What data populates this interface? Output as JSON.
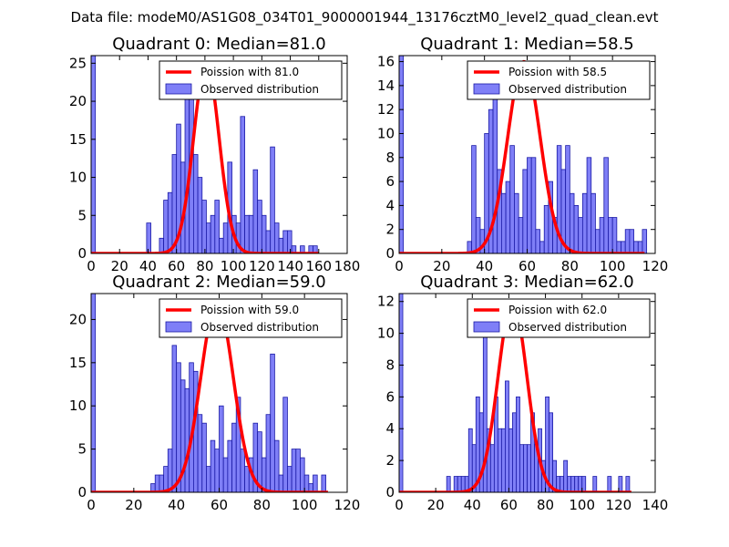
{
  "suptitle": "Data file: modeM0/AS1G08_034T01_9000001944_13176cztM0_level2_quad_clean.evt",
  "colors": {
    "bar_fill": "#7f7ff7",
    "bar_edge": "#1a1aa6",
    "poisson_line": "#ff0000"
  },
  "chart_data": [
    {
      "type": "bar",
      "title": "Quadrant 0: Median=81.0",
      "xlim": [
        0,
        180
      ],
      "ylim": [
        0,
        26
      ],
      "xticks": [
        "0",
        "20",
        "40",
        "60",
        "80",
        "100",
        "120",
        "140",
        "160",
        "180"
      ],
      "yticks": [
        "0",
        "5",
        "10",
        "15",
        "20",
        "25"
      ],
      "legend": [
        "Poission with 81.0",
        "Observed distribution"
      ],
      "bin_width": 3,
      "bins": [
        [
          0,
          26
        ],
        [
          39,
          4
        ],
        [
          48,
          2
        ],
        [
          51,
          7
        ],
        [
          54,
          8
        ],
        [
          57,
          13
        ],
        [
          60,
          17
        ],
        [
          63,
          12
        ],
        [
          66,
          21
        ],
        [
          69,
          25
        ],
        [
          72,
          13
        ],
        [
          75,
          10
        ],
        [
          78,
          7
        ],
        [
          81,
          4
        ],
        [
          84,
          5
        ],
        [
          87,
          7
        ],
        [
          90,
          2
        ],
        [
          93,
          4
        ],
        [
          96,
          12
        ],
        [
          99,
          5
        ],
        [
          102,
          4
        ],
        [
          105,
          18
        ],
        [
          108,
          5
        ],
        [
          111,
          5
        ],
        [
          114,
          11
        ],
        [
          117,
          7
        ],
        [
          120,
          5
        ],
        [
          123,
          3
        ],
        [
          126,
          14
        ],
        [
          129,
          4
        ],
        [
          132,
          2
        ],
        [
          135,
          3
        ],
        [
          138,
          3
        ],
        [
          141,
          1
        ],
        [
          147,
          1
        ],
        [
          153,
          1
        ],
        [
          156,
          1
        ]
      ],
      "poisson": {
        "mean": 81.0,
        "peak": 25,
        "width": 9.0,
        "xrange": [
          0,
          160
        ]
      }
    },
    {
      "type": "bar",
      "title": "Quadrant 1: Median=58.5",
      "xlim": [
        0,
        120
      ],
      "ylim": [
        0,
        16.5
      ],
      "xticks": [
        "0",
        "20",
        "40",
        "60",
        "80",
        "100",
        "120"
      ],
      "yticks": [
        "0",
        "2",
        "4",
        "6",
        "8",
        "10",
        "12",
        "14",
        "16"
      ],
      "legend": [
        "Poission with 58.5",
        "Observed distribution"
      ],
      "bin_width": 2,
      "bins": [
        [
          0,
          16.5
        ],
        [
          32,
          1
        ],
        [
          34,
          9
        ],
        [
          36,
          3
        ],
        [
          38,
          2
        ],
        [
          40,
          10
        ],
        [
          42,
          12
        ],
        [
          44,
          15
        ],
        [
          46,
          7
        ],
        [
          48,
          5
        ],
        [
          50,
          6
        ],
        [
          52,
          9
        ],
        [
          54,
          5
        ],
        [
          56,
          3
        ],
        [
          58,
          7
        ],
        [
          60,
          8
        ],
        [
          62,
          8
        ],
        [
          64,
          2
        ],
        [
          66,
          1
        ],
        [
          68,
          4
        ],
        [
          70,
          6
        ],
        [
          72,
          3
        ],
        [
          74,
          9
        ],
        [
          76,
          7
        ],
        [
          78,
          9
        ],
        [
          80,
          5
        ],
        [
          82,
          4
        ],
        [
          84,
          3
        ],
        [
          86,
          5
        ],
        [
          88,
          8
        ],
        [
          90,
          5
        ],
        [
          92,
          2
        ],
        [
          94,
          3
        ],
        [
          96,
          8
        ],
        [
          98,
          3
        ],
        [
          100,
          3
        ],
        [
          102,
          1
        ],
        [
          104,
          1
        ],
        [
          106,
          2
        ],
        [
          108,
          2
        ],
        [
          110,
          1
        ],
        [
          112,
          1
        ],
        [
          114,
          2
        ]
      ],
      "poisson": {
        "mean": 58.5,
        "peak": 16,
        "width": 7.6,
        "xrange": [
          0,
          115
        ]
      }
    },
    {
      "type": "bar",
      "title": "Quadrant 2: Median=59.0",
      "xlim": [
        0,
        120
      ],
      "ylim": [
        0,
        23
      ],
      "xticks": [
        "0",
        "20",
        "40",
        "60",
        "80",
        "100",
        "120"
      ],
      "yticks": [
        "0",
        "5",
        "10",
        "15",
        "20"
      ],
      "legend": [
        "Poission with 59.0",
        "Observed distribution"
      ],
      "bin_width": 2,
      "bins": [
        [
          0,
          23
        ],
        [
          28,
          1
        ],
        [
          30,
          2
        ],
        [
          32,
          2
        ],
        [
          34,
          3
        ],
        [
          36,
          5
        ],
        [
          38,
          17
        ],
        [
          40,
          15
        ],
        [
          42,
          13
        ],
        [
          44,
          12
        ],
        [
          46,
          15
        ],
        [
          48,
          14
        ],
        [
          50,
          9
        ],
        [
          52,
          8
        ],
        [
          54,
          3
        ],
        [
          56,
          6
        ],
        [
          58,
          5
        ],
        [
          60,
          10
        ],
        [
          62,
          4
        ],
        [
          64,
          6
        ],
        [
          66,
          8
        ],
        [
          68,
          11
        ],
        [
          70,
          5
        ],
        [
          72,
          3
        ],
        [
          74,
          4
        ],
        [
          76,
          8
        ],
        [
          78,
          7
        ],
        [
          80,
          4
        ],
        [
          82,
          9
        ],
        [
          84,
          16
        ],
        [
          86,
          6
        ],
        [
          88,
          2
        ],
        [
          90,
          11
        ],
        [
          92,
          3
        ],
        [
          94,
          5
        ],
        [
          96,
          5
        ],
        [
          98,
          4
        ],
        [
          100,
          2
        ],
        [
          102,
          1
        ],
        [
          104,
          2
        ],
        [
          108,
          2
        ]
      ],
      "poisson": {
        "mean": 59.0,
        "peak": 22,
        "width": 7.6,
        "xrange": [
          0,
          111
        ]
      }
    },
    {
      "type": "bar",
      "title": "Quadrant 3: Median=62.0",
      "xlim": [
        0,
        140
      ],
      "ylim": [
        0,
        12.5
      ],
      "xticks": [
        "0",
        "20",
        "40",
        "60",
        "80",
        "100",
        "120",
        "140"
      ],
      "yticks": [
        "0",
        "2",
        "4",
        "6",
        "8",
        "10",
        "12"
      ],
      "legend": [
        "Poission with 62.0",
        "Observed distribution"
      ],
      "bin_width": 2,
      "bins": [
        [
          0,
          12.5
        ],
        [
          26,
          1
        ],
        [
          30,
          1
        ],
        [
          32,
          1
        ],
        [
          34,
          1
        ],
        [
          36,
          1
        ],
        [
          38,
          4
        ],
        [
          40,
          3
        ],
        [
          42,
          6
        ],
        [
          44,
          5
        ],
        [
          46,
          10
        ],
        [
          48,
          4
        ],
        [
          50,
          3
        ],
        [
          52,
          6
        ],
        [
          54,
          4
        ],
        [
          56,
          4
        ],
        [
          58,
          7
        ],
        [
          60,
          4
        ],
        [
          62,
          5
        ],
        [
          64,
          6
        ],
        [
          66,
          3
        ],
        [
          68,
          3
        ],
        [
          70,
          3
        ],
        [
          72,
          5
        ],
        [
          74,
          3
        ],
        [
          76,
          4
        ],
        [
          78,
          2
        ],
        [
          80,
          6
        ],
        [
          82,
          5
        ],
        [
          84,
          2
        ],
        [
          86,
          1
        ],
        [
          88,
          1
        ],
        [
          90,
          2
        ],
        [
          92,
          1
        ],
        [
          94,
          1
        ],
        [
          96,
          1
        ],
        [
          98,
          1
        ],
        [
          100,
          1
        ],
        [
          106,
          1
        ],
        [
          114,
          1
        ],
        [
          120,
          1
        ],
        [
          124,
          1
        ]
      ],
      "poisson": {
        "mean": 62.0,
        "peak": 12,
        "width": 7.9,
        "xrange": [
          0,
          127
        ]
      }
    }
  ]
}
